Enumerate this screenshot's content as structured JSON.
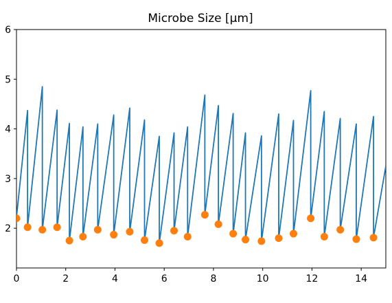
{
  "chart_data": {
    "type": "line",
    "title": "Microbe Size [μm]",
    "xlabel": "",
    "ylabel": "",
    "xlim": [
      0,
      15
    ],
    "ylim": [
      1.2,
      6.0
    ],
    "grid": false,
    "x_ticks": [
      0,
      2,
      4,
      6,
      8,
      10,
      12,
      14
    ],
    "y_ticks": [
      2,
      3,
      4,
      5,
      6
    ],
    "colors": {
      "line": "#1f77b4",
      "points": "#ff7f0e"
    },
    "series": [
      {
        "type": "line",
        "points": [
          [
            0.0,
            2.22
          ],
          [
            0.45,
            4.37
          ],
          [
            0.45,
            2.02
          ],
          [
            1.05,
            4.85
          ],
          [
            1.05,
            1.97
          ],
          [
            1.65,
            4.38
          ],
          [
            1.65,
            2.02
          ],
          [
            2.15,
            4.11
          ],
          [
            2.15,
            1.75
          ],
          [
            2.7,
            4.04
          ],
          [
            2.7,
            1.83
          ],
          [
            3.3,
            4.1
          ],
          [
            3.3,
            1.97
          ],
          [
            3.95,
            4.28
          ],
          [
            3.95,
            1.87
          ],
          [
            4.6,
            4.42
          ],
          [
            4.6,
            1.93
          ],
          [
            5.2,
            4.18
          ],
          [
            5.2,
            1.76
          ],
          [
            5.8,
            3.85
          ],
          [
            5.8,
            1.7
          ],
          [
            6.4,
            3.92
          ],
          [
            6.4,
            1.95
          ],
          [
            6.95,
            4.04
          ],
          [
            6.95,
            1.83
          ],
          [
            7.65,
            4.68
          ],
          [
            7.65,
            2.27
          ],
          [
            8.2,
            4.47
          ],
          [
            8.2,
            2.08
          ],
          [
            8.8,
            4.31
          ],
          [
            8.8,
            1.89
          ],
          [
            9.3,
            3.92
          ],
          [
            9.3,
            1.77
          ],
          [
            9.95,
            3.86
          ],
          [
            9.95,
            1.74
          ],
          [
            10.65,
            4.3
          ],
          [
            10.65,
            1.8
          ],
          [
            11.25,
            4.17
          ],
          [
            11.25,
            1.89
          ],
          [
            11.95,
            4.77
          ],
          [
            11.95,
            2.2
          ],
          [
            12.5,
            4.35
          ],
          [
            12.5,
            1.83
          ],
          [
            13.15,
            4.21
          ],
          [
            13.15,
            1.97
          ],
          [
            13.8,
            4.1
          ],
          [
            13.8,
            1.78
          ],
          [
            14.5,
            4.25
          ],
          [
            14.5,
            1.81
          ],
          [
            15.0,
            3.25
          ]
        ]
      },
      {
        "type": "scatter",
        "points": [
          [
            0.0,
            2.2
          ],
          [
            0.45,
            2.02
          ],
          [
            1.05,
            1.97
          ],
          [
            1.65,
            2.02
          ],
          [
            2.15,
            1.75
          ],
          [
            2.7,
            1.83
          ],
          [
            3.3,
            1.97
          ],
          [
            3.95,
            1.87
          ],
          [
            4.6,
            1.93
          ],
          [
            5.2,
            1.76
          ],
          [
            5.8,
            1.7
          ],
          [
            6.4,
            1.95
          ],
          [
            6.95,
            1.83
          ],
          [
            7.65,
            2.27
          ],
          [
            8.2,
            2.08
          ],
          [
            8.8,
            1.89
          ],
          [
            9.3,
            1.77
          ],
          [
            9.95,
            1.74
          ],
          [
            10.65,
            1.8
          ],
          [
            11.25,
            1.89
          ],
          [
            11.95,
            2.2
          ],
          [
            12.5,
            1.83
          ],
          [
            13.15,
            1.97
          ],
          [
            13.8,
            1.78
          ],
          [
            14.5,
            1.81
          ]
        ]
      }
    ]
  }
}
